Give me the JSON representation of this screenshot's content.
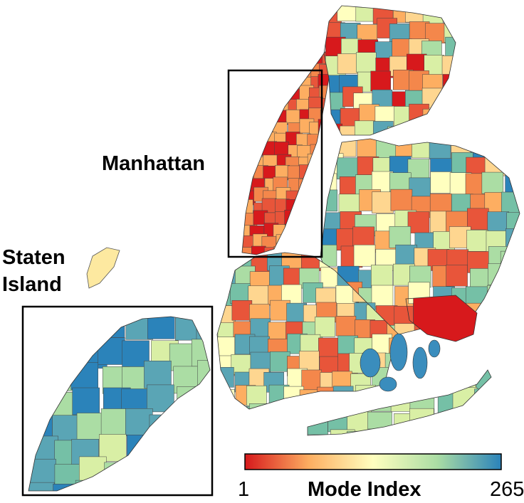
{
  "map": {
    "labels": {
      "manhattan": "Manhattan",
      "staten_island_line1": "Staten",
      "staten_island_line2": "Island"
    },
    "colorbar": {
      "min_label": "1",
      "max_label": "265",
      "title": "Mode Index",
      "colors": [
        "#d7191c",
        "#fdae61",
        "#ffffbf",
        "#abdda4",
        "#2b83ba"
      ]
    }
  }
}
